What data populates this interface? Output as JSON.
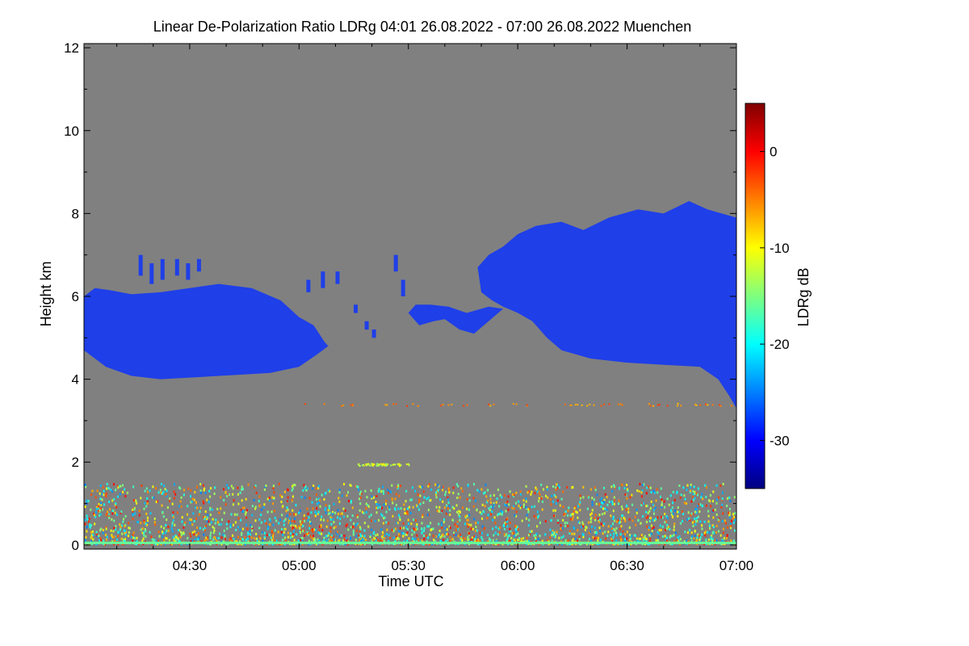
{
  "chart_data": {
    "type": "heatmap",
    "title": "Linear De-Polarization Ratio LDRg   04:01 26.08.2022 - 07:00 26.08.2022 Muenchen",
    "xlabel": "Time UTC",
    "ylabel": "Height km",
    "x_range_minutes": [
      241,
      420
    ],
    "x_ticks": [
      {
        "label": "04:30",
        "minutes": 270
      },
      {
        "label": "05:00",
        "minutes": 300
      },
      {
        "label": "05:30",
        "minutes": 330
      },
      {
        "label": "06:00",
        "minutes": 360
      },
      {
        "label": "06:30",
        "minutes": 390
      },
      {
        "label": "07:00",
        "minutes": 420
      }
    ],
    "y_range_km": [
      -0.1,
      12.1
    ],
    "y_ticks": [
      {
        "label": "0",
        "value": 0
      },
      {
        "label": "2",
        "value": 2
      },
      {
        "label": "4",
        "value": 4
      },
      {
        "label": "6",
        "value": 6
      },
      {
        "label": "8",
        "value": 8
      },
      {
        "label": "10",
        "value": 10
      },
      {
        "label": "12",
        "value": 12
      }
    ],
    "background_color": "#808080",
    "colorbar": {
      "label": "LDRg dB",
      "range_db": [
        -35,
        5
      ],
      "ticks": [
        {
          "label": "0",
          "value": 0
        },
        {
          "label": "-10",
          "value": -10
        },
        {
          "label": "-20",
          "value": -20
        },
        {
          "label": "-30",
          "value": -30
        }
      ],
      "colormap": [
        "#00007f",
        "#0000ff",
        "#007fff",
        "#00ffff",
        "#7fff7f",
        "#ffff00",
        "#ff7f00",
        "#ff0000",
        "#7f0000"
      ]
    },
    "cloud_layers": [
      {
        "name": "cloud-layer-early",
        "ldr_db": -30,
        "color": "#1f3fe8",
        "outline": [
          [
            241,
            4.7
          ],
          [
            247,
            4.3
          ],
          [
            254,
            4.08
          ],
          [
            262,
            4.0
          ],
          [
            272,
            4.05
          ],
          [
            282,
            4.1
          ],
          [
            292,
            4.15
          ],
          [
            300,
            4.3
          ],
          [
            305,
            4.6
          ],
          [
            308,
            4.8
          ],
          [
            311,
            4.5
          ],
          [
            314,
            4.2
          ],
          [
            315,
            4.1
          ],
          [
            312,
            4.4
          ],
          [
            307,
            4.9
          ],
          [
            304,
            5.3
          ],
          [
            300,
            5.5
          ],
          [
            295,
            5.9
          ],
          [
            287,
            6.2
          ],
          [
            278,
            6.3
          ],
          [
            270,
            6.2
          ],
          [
            262,
            6.1
          ],
          [
            254,
            6.05
          ],
          [
            248,
            6.15
          ],
          [
            244,
            6.2
          ],
          [
            241,
            6.0
          ]
        ]
      },
      {
        "name": "cloud-layer-middle",
        "ldr_db": -30,
        "color": "#1f3fe8",
        "outline": [
          [
            333,
            5.3
          ],
          [
            337,
            5.4
          ],
          [
            340,
            5.45
          ],
          [
            344,
            5.2
          ],
          [
            348,
            5.1
          ],
          [
            352,
            5.4
          ],
          [
            356,
            5.7
          ],
          [
            352,
            5.75
          ],
          [
            346,
            5.6
          ],
          [
            341,
            5.75
          ],
          [
            336,
            5.8
          ],
          [
            332,
            5.8
          ],
          [
            330,
            5.6
          ]
        ]
      },
      {
        "name": "cloud-layer-late",
        "ldr_db": -30,
        "color": "#1f3fe8",
        "outline": [
          [
            356,
            5.75
          ],
          [
            360,
            5.6
          ],
          [
            364,
            5.4
          ],
          [
            368,
            5.0
          ],
          [
            372,
            4.7
          ],
          [
            380,
            4.5
          ],
          [
            390,
            4.4
          ],
          [
            400,
            4.35
          ],
          [
            410,
            4.3
          ],
          [
            415,
            4.0
          ],
          [
            418,
            3.6
          ],
          [
            420,
            3.3
          ],
          [
            420,
            7.9
          ],
          [
            416,
            8.0
          ],
          [
            412,
            8.1
          ],
          [
            407,
            8.3
          ],
          [
            400,
            8.0
          ],
          [
            393,
            8.1
          ],
          [
            385,
            7.9
          ],
          [
            378,
            7.6
          ],
          [
            372,
            7.8
          ],
          [
            365,
            7.7
          ],
          [
            360,
            7.5
          ],
          [
            356,
            7.2
          ],
          [
            352,
            7.0
          ],
          [
            349,
            6.7
          ],
          [
            350,
            6.1
          ],
          [
            353,
            5.9
          ]
        ]
      }
    ],
    "boundary_layer": {
      "name": "noisy-boundary-layer",
      "height_range_km": [
        0.05,
        1.5
      ],
      "ldr_range_db": [
        -25,
        0
      ]
    },
    "aerosol_lines": [
      {
        "name": "aerosol-line-3-4km",
        "height_km": 3.4,
        "time_range_minutes": [
          301,
          420
        ],
        "ldr_db": -5
      },
      {
        "name": "aerosol-line-2km",
        "height_km": 1.95,
        "time_range_minutes": [
          316,
          330
        ],
        "ldr_db": -12
      }
    ]
  }
}
